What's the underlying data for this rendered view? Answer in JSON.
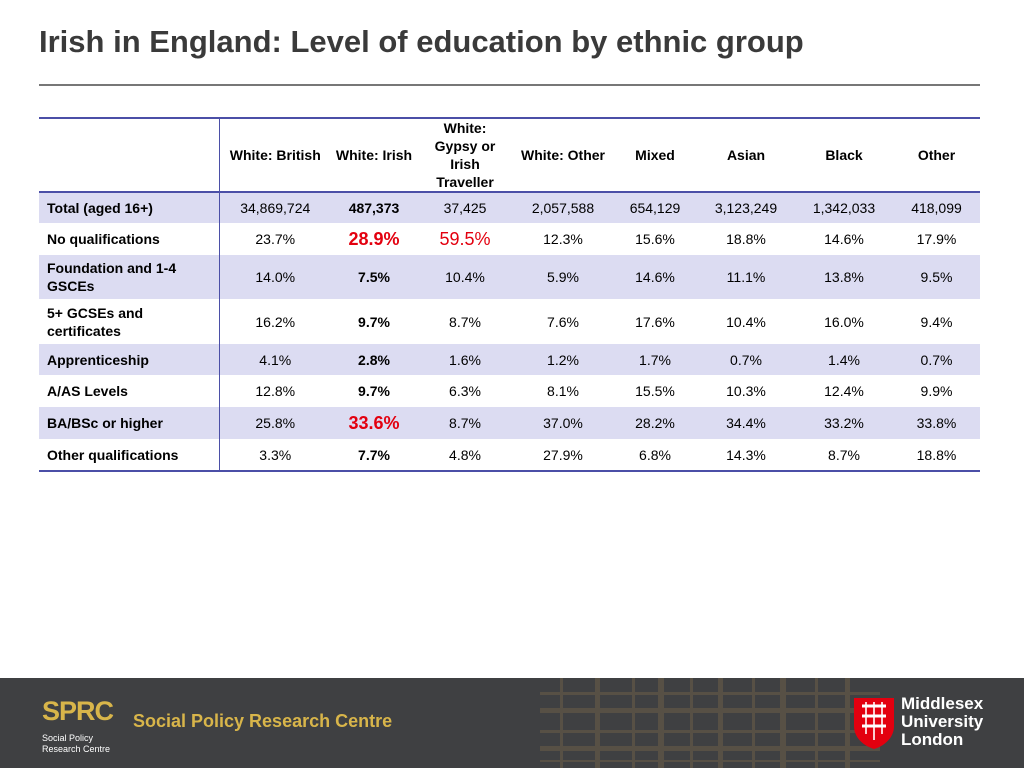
{
  "title": "Irish in England: Level of education by ethnic group",
  "table": {
    "columns": [
      "White: British",
      "White: Irish",
      "White: Gypsy or Irish Traveller",
      "White: Other",
      "Mixed",
      "Asian",
      "Black",
      "Other"
    ],
    "rows": [
      {
        "label": "Total (aged 16+)",
        "values": [
          "34,869,724",
          "487,373",
          "37,425",
          "2,057,588",
          "654,129",
          "3,123,249",
          "1,342,033",
          "418,099"
        ]
      },
      {
        "label": "No qualifications",
        "values": [
          "23.7%",
          "28.9%",
          "59.5%",
          "12.3%",
          "15.6%",
          "18.8%",
          "14.6%",
          "17.9%"
        ]
      },
      {
        "label": "Foundation and 1-4 GSCEs",
        "values": [
          "14.0%",
          "7.5%",
          "10.4%",
          "5.9%",
          "14.6%",
          "11.1%",
          "13.8%",
          "9.5%"
        ]
      },
      {
        "label": "5+ GCSEs and certificates",
        "values": [
          "16.2%",
          "9.7%",
          "8.7%",
          "7.6%",
          "17.6%",
          "10.4%",
          "16.0%",
          "9.4%"
        ]
      },
      {
        "label": "Apprenticeship",
        "values": [
          "4.1%",
          "2.8%",
          "1.6%",
          "1.2%",
          "1.7%",
          "0.7%",
          "1.4%",
          "0.7%"
        ]
      },
      {
        "label": "A/AS Levels",
        "values": [
          "12.8%",
          "9.7%",
          "6.3%",
          "8.1%",
          "15.5%",
          "10.3%",
          "12.4%",
          "9.9%"
        ]
      },
      {
        "label": "BA/BSc or higher",
        "values": [
          "25.8%",
          "33.6%",
          "8.7%",
          "37.0%",
          "28.2%",
          "34.4%",
          "33.2%",
          "33.8%"
        ]
      },
      {
        "label": "Other qualifications",
        "values": [
          "3.3%",
          "7.7%",
          "4.8%",
          "27.9%",
          "6.8%",
          "14.3%",
          "8.7%",
          "18.8%"
        ]
      }
    ]
  },
  "footer": {
    "sprc_logo_word": "SPRC",
    "sprc_logo_sub_1": "Social Policy",
    "sprc_logo_sub_2": "Research Centre",
    "sprc_name": "Social Policy Research Centre",
    "uni_line_1": "Middlesex",
    "uni_line_2": "University",
    "uni_line_3": "London"
  },
  "colors": {
    "table_rule": "#4b4fa7",
    "row_shade": "#dcdcf2",
    "highlight_red": "#e3000f",
    "footer_bg": "#3f4042",
    "sprc_gold": "#d8b54a",
    "mdx_red": "#e3000f"
  }
}
